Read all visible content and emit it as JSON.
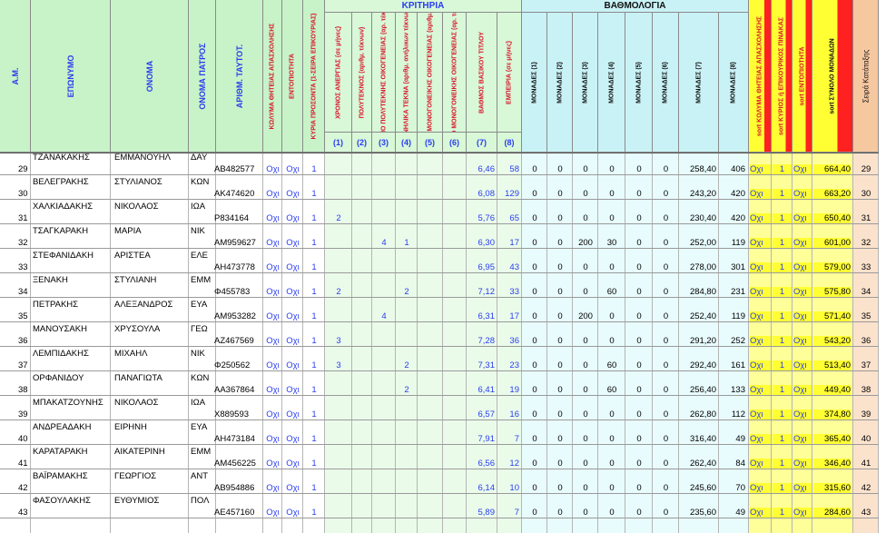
{
  "group_headers": {
    "kriteria": "ΚΡΙΤΗΡΙΑ",
    "bathmologia": "ΒΑΘΜΟΛΟΓΙΑ"
  },
  "headers": {
    "am": "Α.Μ.",
    "eponymo": "ΕΠΩΝΥΜΟ",
    "onoma": "ΟΝΟΜΑ",
    "onoma_patros": "ΟΝΟΜΑ ΠΑΤΡΟΣ",
    "arithm_tautot": "ΑΡΙΘΜ. ΤΑΥΤΟΤ.",
    "kolyma": "ΚΩΛΥΜΑ ΘΗΤΕΙΑΣ ΑΠΑΣΧΟΛΗΣΗΣ",
    "entopiotita": "ΕΝΤΟΠΙΟΤΗΤΑ",
    "kyria_prosonta": "ΚΥΡΙΑ ΠΡΟΣΟΝΤΑ (1-ΣΕΙΡΑ ΕΠΙΚΟΥΡΙΑΣ)",
    "k1": "ΧΡΟΝΟΣ ΑΝΕΡΓΙΑΣ (σε μήνες)",
    "k2": "ΠΟΛΥΤΕΚΝΟΣ (αριθμ. τέκνων)",
    "k3": "ΤΕΚΝΟ ΠΟΛΥΤΕΚΝΗΣ ΟΙΚΟΓΕΝΕΙΑΣ (αρ. τέκνων)",
    "k4": "ΑΝΗΛΙΚΑ ΤΕΚΝΑ (αριθμ. ανήλικων τέκνων)",
    "k5": "ΓΟΝΕΑΣ ΜΟΝΟΓΟΝΕΙΚΗΣ ΟΙΚΟΓΕΝΕΙΑΣ (αριθμ. τέκνων)",
    "k6": "ΤΕΚΝΟ ΜΟΝΟΓΟΝΕΙΚΗΣ ΟΙΚΟΓΕΝΕΙΑΣ (αρ. τέκνων)",
    "k7": "ΒΑΘΜΟΣ ΒΑΣΙΚΟΥ ΤΙΤΛΟΥ",
    "k8": "ΕΜΠΕΙΡΙΑ (σε μήνες)",
    "m1": "ΜΟΝΑΔΕΣ (1)",
    "m2": "ΜΟΝΑΔΕΣ (2)",
    "m3": "ΜΟΝΑΔΕΣ (3)",
    "m4": "ΜΟΝΑΔΕΣ (4)",
    "m5": "ΜΟΝΑΔΕΣ (5)",
    "m6": "ΜΟΝΑΔΕΣ (6)",
    "m7": "ΜΟΝΑΔΕΣ (7)",
    "m8": "ΜΟΝΑΔΕΣ (8)",
    "sort_kolyma": "sort ΚΩΛΥΜΑ ΘΗΤΕΙΑΣ ΑΠΑΣΧΟΛΗΣΗΣ",
    "sort_kyrios": "sort ΚΥΡΙΟΣ ή ΕΠΙΚΟΥΡΙΚΟΣ ΠΙΝΑΚΑΣ",
    "sort_entop": "sort ΕΝΤΟΠΙΟΤΗΤΑ",
    "sort_synolo": "sort ΣΥΝΟΛΟ ΜΟΝΑΔΩΝ",
    "seira": "Σειρά Κατάταξης"
  },
  "criteria_numbers": [
    "(1)",
    "(2)",
    "(3)",
    "(4)",
    "(5)",
    "(6)",
    "(7)",
    "(8)"
  ],
  "rows": [
    {
      "am": "29",
      "eponymo": "ΤΖΑΝΑΚΑΚΗΣ",
      "onoma": "ΕΜΜΑΝΟΥΗΛ",
      "patros": "ΔΑΥ",
      "tautot": "ΑΒ482577",
      "kolyma": "Οχι",
      "entop": "Οχι",
      "kyria": "1",
      "k1": "",
      "k2": "",
      "k3": "",
      "k4": "",
      "k5": "",
      "k6": "",
      "k7": "6,46",
      "k8": "58",
      "m1": "0",
      "m2": "0",
      "m3": "0",
      "m4": "0",
      "m5": "0",
      "m6": "0",
      "m7": "258,40",
      "m8": "406",
      "s_kolyma": "Οχι",
      "s_kyrios": "1",
      "s_entop": "Οχι",
      "s_synolo": "664,40",
      "seira": "29"
    },
    {
      "am": "30",
      "eponymo": "ΒΕΛΕΓΡΑΚΗΣ",
      "onoma": "ΣΤΥΛΙΑΝΟΣ",
      "patros": "ΚΩΝ",
      "tautot": "ΑΚ474620",
      "kolyma": "Οχι",
      "entop": "Οχι",
      "kyria": "1",
      "k1": "",
      "k2": "",
      "k3": "",
      "k4": "",
      "k5": "",
      "k6": "",
      "k7": "6,08",
      "k8": "129",
      "m1": "0",
      "m2": "0",
      "m3": "0",
      "m4": "0",
      "m5": "0",
      "m6": "0",
      "m7": "243,20",
      "m8": "420",
      "s_kolyma": "Οχι",
      "s_kyrios": "1",
      "s_entop": "Οχι",
      "s_synolo": "663,20",
      "seira": "30"
    },
    {
      "am": "31",
      "eponymo": "ΧΑΛΚΙΑΔΑΚΗΣ",
      "onoma": "ΝΙΚΟΛΑΟΣ",
      "patros": "ΙΩΑ",
      "tautot": "Ρ834164",
      "kolyma": "Οχι",
      "entop": "Οχι",
      "kyria": "1",
      "k1": "2",
      "k2": "",
      "k3": "",
      "k4": "",
      "k5": "",
      "k6": "",
      "k7": "5,76",
      "k8": "65",
      "m1": "0",
      "m2": "0",
      "m3": "0",
      "m4": "0",
      "m5": "0",
      "m6": "0",
      "m7": "230,40",
      "m8": "420",
      "s_kolyma": "Οχι",
      "s_kyrios": "1",
      "s_entop": "Οχι",
      "s_synolo": "650,40",
      "seira": "31"
    },
    {
      "am": "32",
      "eponymo": "ΤΣΑΓΚΑΡΑΚΗ",
      "onoma": "ΜΑΡΙΑ",
      "patros": "ΝΙΚ",
      "tautot": "ΑΜ959627",
      "kolyma": "Οχι",
      "entop": "Οχι",
      "kyria": "1",
      "k1": "",
      "k2": "",
      "k3": "4",
      "k4": "1",
      "k5": "",
      "k6": "",
      "k7": "6,30",
      "k8": "17",
      "m1": "0",
      "m2": "0",
      "m3": "200",
      "m4": "30",
      "m5": "0",
      "m6": "0",
      "m7": "252,00",
      "m8": "119",
      "s_kolyma": "Οχι",
      "s_kyrios": "1",
      "s_entop": "Οχι",
      "s_synolo": "601,00",
      "seira": "32"
    },
    {
      "am": "33",
      "eponymo": "ΣΤΕΦΑΝΙΔΑΚΗ",
      "onoma": "ΑΡΙΣΤΕΑ",
      "patros": "ΕΛΕ",
      "tautot": "ΑΗ473778",
      "kolyma": "Οχι",
      "entop": "Οχι",
      "kyria": "1",
      "k1": "",
      "k2": "",
      "k3": "",
      "k4": "",
      "k5": "",
      "k6": "",
      "k7": "6,95",
      "k8": "43",
      "m1": "0",
      "m2": "0",
      "m3": "0",
      "m4": "0",
      "m5": "0",
      "m6": "0",
      "m7": "278,00",
      "m8": "301",
      "s_kolyma": "Οχι",
      "s_kyrios": "1",
      "s_entop": "Οχι",
      "s_synolo": "579,00",
      "seira": "33"
    },
    {
      "am": "34",
      "eponymo": "ΞΕΝΑΚΗ",
      "onoma": "ΣΤΥΛΙΑΝΗ",
      "patros": "ΕΜΜ",
      "tautot": "Φ455783",
      "kolyma": "Οχι",
      "entop": "Οχι",
      "kyria": "1",
      "k1": "2",
      "k2": "",
      "k3": "",
      "k4": "2",
      "k5": "",
      "k6": "",
      "k7": "7,12",
      "k8": "33",
      "m1": "0",
      "m2": "0",
      "m3": "0",
      "m4": "60",
      "m5": "0",
      "m6": "0",
      "m7": "284,80",
      "m8": "231",
      "s_kolyma": "Οχι",
      "s_kyrios": "1",
      "s_entop": "Οχι",
      "s_synolo": "575,80",
      "seira": "34"
    },
    {
      "am": "35",
      "eponymo": "ΠΕΤΡΑΚΗΣ",
      "onoma": "ΑΛΕΞΑΝΔΡΟΣ",
      "patros": "ΕΥΑ",
      "tautot": "ΑΜ953282",
      "kolyma": "Οχι",
      "entop": "Οχι",
      "kyria": "1",
      "k1": "",
      "k2": "",
      "k3": "4",
      "k4": "",
      "k5": "",
      "k6": "",
      "k7": "6,31",
      "k8": "17",
      "m1": "0",
      "m2": "0",
      "m3": "200",
      "m4": "0",
      "m5": "0",
      "m6": "0",
      "m7": "252,40",
      "m8": "119",
      "s_kolyma": "Οχι",
      "s_kyrios": "1",
      "s_entop": "Οχι",
      "s_synolo": "571,40",
      "seira": "35"
    },
    {
      "am": "36",
      "eponymo": "ΜΑΝΟΥΣΑΚΗ",
      "onoma": "ΧΡΥΣΟΥΛΑ",
      "patros": "ΓΕΩ",
      "tautot": "ΑΖ467569",
      "kolyma": "Οχι",
      "entop": "Οχι",
      "kyria": "1",
      "k1": "3",
      "k2": "",
      "k3": "",
      "k4": "",
      "k5": "",
      "k6": "",
      "k7": "7,28",
      "k8": "36",
      "m1": "0",
      "m2": "0",
      "m3": "0",
      "m4": "0",
      "m5": "0",
      "m6": "0",
      "m7": "291,20",
      "m8": "252",
      "s_kolyma": "Οχι",
      "s_kyrios": "1",
      "s_entop": "Οχι",
      "s_synolo": "543,20",
      "seira": "36"
    },
    {
      "am": "37",
      "eponymo": "ΛΕΜΠΙΔΑΚΗΣ",
      "onoma": "ΜΙΧΑΗΛ",
      "patros": "ΝΙΚ",
      "tautot": "Φ250562",
      "kolyma": "Οχι",
      "entop": "Οχι",
      "kyria": "1",
      "k1": "3",
      "k2": "",
      "k3": "",
      "k4": "2",
      "k5": "",
      "k6": "",
      "k7": "7,31",
      "k8": "23",
      "m1": "0",
      "m2": "0",
      "m3": "0",
      "m4": "60",
      "m5": "0",
      "m6": "0",
      "m7": "292,40",
      "m8": "161",
      "s_kolyma": "Οχι",
      "s_kyrios": "1",
      "s_entop": "Οχι",
      "s_synolo": "513,40",
      "seira": "37"
    },
    {
      "am": "38",
      "eponymo": "ΟΡΦΑΝΙΔΟΥ",
      "onoma": "ΠΑΝΑΓΙΩΤΑ",
      "patros": "ΚΩΝ",
      "tautot": "ΑΑ367864",
      "kolyma": "Οχι",
      "entop": "Οχι",
      "kyria": "1",
      "k1": "",
      "k2": "",
      "k3": "",
      "k4": "2",
      "k5": "",
      "k6": "",
      "k7": "6,41",
      "k8": "19",
      "m1": "0",
      "m2": "0",
      "m3": "0",
      "m4": "60",
      "m5": "0",
      "m6": "0",
      "m7": "256,40",
      "m8": "133",
      "s_kolyma": "Οχι",
      "s_kyrios": "1",
      "s_entop": "Οχι",
      "s_synolo": "449,40",
      "seira": "38"
    },
    {
      "am": "39",
      "eponymo": "ΜΠΑΚΑΤΖΟΥΝΗΣ",
      "onoma": "ΝΙΚΟΛΑΟΣ",
      "patros": "ΙΩΑ",
      "tautot": "Χ889593",
      "kolyma": "Οχι",
      "entop": "Οχι",
      "kyria": "1",
      "k1": "",
      "k2": "",
      "k3": "",
      "k4": "",
      "k5": "",
      "k6": "",
      "k7": "6,57",
      "k8": "16",
      "m1": "0",
      "m2": "0",
      "m3": "0",
      "m4": "0",
      "m5": "0",
      "m6": "0",
      "m7": "262,80",
      "m8": "112",
      "s_kolyma": "Οχι",
      "s_kyrios": "1",
      "s_entop": "Οχι",
      "s_synolo": "374,80",
      "seira": "39"
    },
    {
      "am": "40",
      "eponymo": "ΑΝΔΡΕΑΔΑΚΗ",
      "onoma": "ΕΙΡΗΝΗ",
      "patros": "ΕΥΑ",
      "tautot": "ΑΗ473184",
      "kolyma": "Οχι",
      "entop": "Οχι",
      "kyria": "1",
      "k1": "",
      "k2": "",
      "k3": "",
      "k4": "",
      "k5": "",
      "k6": "",
      "k7": "7,91",
      "k8": "7",
      "m1": "0",
      "m2": "0",
      "m3": "0",
      "m4": "0",
      "m5": "0",
      "m6": "0",
      "m7": "316,40",
      "m8": "49",
      "s_kolyma": "Οχι",
      "s_kyrios": "1",
      "s_entop": "Οχι",
      "s_synolo": "365,40",
      "seira": "40"
    },
    {
      "am": "41",
      "eponymo": "ΚΑΡΑΤΑΡΑΚΗ",
      "onoma": "ΑΙΚΑΤΕΡΙΝΗ",
      "patros": "ΕΜΜ",
      "tautot": "ΑΜ456225",
      "kolyma": "Οχι",
      "entop": "Οχι",
      "kyria": "1",
      "k1": "",
      "k2": "",
      "k3": "",
      "k4": "",
      "k5": "",
      "k6": "",
      "k7": "6,56",
      "k8": "12",
      "m1": "0",
      "m2": "0",
      "m3": "0",
      "m4": "0",
      "m5": "0",
      "m6": "0",
      "m7": "262,40",
      "m8": "84",
      "s_kolyma": "Οχι",
      "s_kyrios": "1",
      "s_entop": "Οχι",
      "s_synolo": "346,40",
      "seira": "41"
    },
    {
      "am": "42",
      "eponymo": "ΒΑΪΡΑΜΑΚΗΣ",
      "onoma": "ΓΕΩΡΓΙΟΣ",
      "patros": "ΑΝΤ",
      "tautot": "ΑΒ954886",
      "kolyma": "Οχι",
      "entop": "Οχι",
      "kyria": "1",
      "k1": "",
      "k2": "",
      "k3": "",
      "k4": "",
      "k5": "",
      "k6": "",
      "k7": "6,14",
      "k8": "10",
      "m1": "0",
      "m2": "0",
      "m3": "0",
      "m4": "0",
      "m5": "0",
      "m6": "0",
      "m7": "245,60",
      "m8": "70",
      "s_kolyma": "Οχι",
      "s_kyrios": "1",
      "s_entop": "Οχι",
      "s_synolo": "315,60",
      "seira": "42"
    },
    {
      "am": "43",
      "eponymo": "ΦΑΣΟΥΛΑΚΗΣ",
      "onoma": "ΕΥΘΥΜΙΟΣ",
      "patros": "ΠΟΛ",
      "tautot": "ΑΕ457160",
      "kolyma": "Οχι",
      "entop": "Οχι",
      "kyria": "1",
      "k1": "",
      "k2": "",
      "k3": "",
      "k4": "",
      "k5": "",
      "k6": "",
      "k7": "5,89",
      "k8": "7",
      "m1": "0",
      "m2": "0",
      "m3": "0",
      "m4": "0",
      "m5": "0",
      "m6": "0",
      "m7": "235,60",
      "m8": "49",
      "s_kolyma": "Οχι",
      "s_kyrios": "1",
      "s_entop": "Οχι",
      "s_synolo": "284,60",
      "seira": "43"
    }
  ],
  "colors": {
    "header_green": "#c8f3c8",
    "kriteria_bg": "#d8f8d8",
    "bathmologia_bg": "#c9f2f6",
    "sort_yellow": "#ffff33",
    "sort_red": "#ff2020",
    "seira_orange": "#f6c8a0",
    "blue_text": "#2a3cf0",
    "red_text": "#d8142a"
  }
}
